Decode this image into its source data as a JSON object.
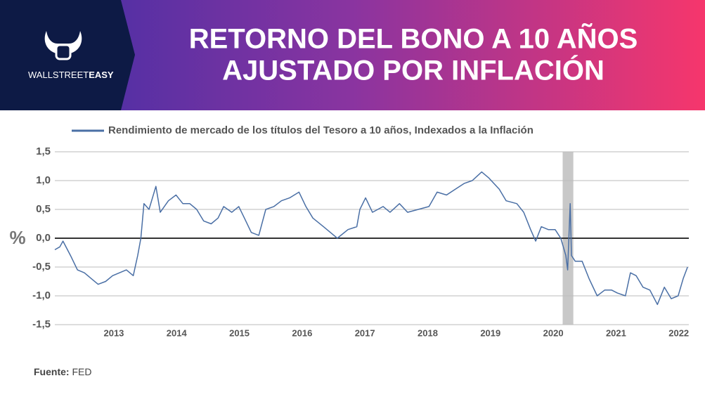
{
  "header": {
    "brand": "WALLSTREET",
    "brand_bold": "EASY"
  },
  "chart_data": {
    "type": "line",
    "title": [
      "RETORNO DEL BONO A 10 AÑOS",
      "AJUSTADO POR INFLACIÓN"
    ],
    "y_label": "%",
    "x": [
      2012.06,
      2012.14,
      2012.19,
      2012.31,
      2012.42,
      2012.53,
      2012.64,
      2012.75,
      2012.87,
      2012.98,
      2013.09,
      2013.2,
      2013.31,
      2013.38,
      2013.43,
      2013.48,
      2013.56,
      2013.67,
      2013.74,
      2013.87,
      2013.99,
      2014.1,
      2014.21,
      2014.32,
      2014.43,
      2014.55,
      2014.66,
      2014.75,
      2014.88,
      2014.99,
      2015.08,
      2015.19,
      2015.31,
      2015.42,
      2015.55,
      2015.67,
      2015.8,
      2015.95,
      2016.06,
      2016.17,
      2016.34,
      2016.45,
      2016.56,
      2016.73,
      2016.87,
      2016.92,
      2017.01,
      2017.12,
      2017.29,
      2017.4,
      2017.55,
      2017.68,
      2017.85,
      2018.02,
      2018.15,
      2018.3,
      2018.44,
      2018.58,
      2018.71,
      2018.86,
      2018.97,
      2019.14,
      2019.25,
      2019.42,
      2019.53,
      2019.64,
      2019.72,
      2019.81,
      2019.92,
      2020.03,
      2020.12,
      2020.2,
      2020.23,
      2020.27,
      2020.29,
      2020.35,
      2020.46,
      2020.57,
      2020.7,
      2020.82,
      2020.93,
      2021.02,
      2021.15,
      2021.23,
      2021.32,
      2021.43,
      2021.54,
      2021.66,
      2021.77,
      2021.88,
      2021.99,
      2022.07,
      2022.14
    ],
    "series": [
      {
        "name": "Rendimiento de mercado de los títulos del Tesoro a 10 años, Indexados a la Inflación",
        "color": "#4a6fa5",
        "values": [
          -0.2,
          -0.15,
          -0.05,
          -0.3,
          -0.55,
          -0.6,
          -0.7,
          -0.8,
          -0.75,
          -0.65,
          -0.6,
          -0.55,
          -0.65,
          -0.3,
          0.0,
          0.6,
          0.5,
          0.9,
          0.45,
          0.65,
          0.75,
          0.6,
          0.6,
          0.5,
          0.3,
          0.25,
          0.35,
          0.55,
          0.45,
          0.55,
          0.35,
          0.1,
          0.05,
          0.5,
          0.55,
          0.65,
          0.7,
          0.8,
          0.55,
          0.35,
          0.2,
          0.1,
          0.0,
          0.15,
          0.2,
          0.5,
          0.7,
          0.45,
          0.55,
          0.45,
          0.6,
          0.45,
          0.5,
          0.55,
          0.8,
          0.75,
          0.85,
          0.95,
          1.0,
          1.15,
          1.05,
          0.85,
          0.65,
          0.6,
          0.45,
          0.15,
          -0.05,
          0.2,
          0.15,
          0.15,
          0.0,
          -0.3,
          -0.55,
          0.6,
          -0.3,
          -0.4,
          -0.4,
          -0.7,
          -1.0,
          -0.9,
          -0.9,
          -0.95,
          -1.0,
          -0.6,
          -0.65,
          -0.85,
          -0.9,
          -1.15,
          -0.85,
          -1.05,
          -1.0,
          -0.7,
          -0.5
        ]
      }
    ],
    "xlim": [
      2012.06,
      2022.16
    ],
    "xticks": [
      2013,
      2014,
      2015,
      2016,
      2017,
      2018,
      2019,
      2020,
      2021,
      2022
    ],
    "ylim": [
      -1.5,
      1.5
    ],
    "yticks": [
      {
        "value": 1.5,
        "label": "1,5"
      },
      {
        "value": 1.0,
        "label": "1,0"
      },
      {
        "value": 0.5,
        "label": "0,5"
      },
      {
        "value": 0,
        "label": "0,0"
      },
      {
        "value": -0.5,
        "label": "-0,5"
      },
      {
        "value": -1.0,
        "label": "-1,0"
      },
      {
        "value": -1.5,
        "label": "-1,5"
      }
    ],
    "shaded_periods": [
      [
        2020.15,
        2020.32
      ]
    ],
    "grid": true,
    "legend": "top"
  },
  "footer": {
    "source_label": "Fuente:",
    "source": "FED"
  }
}
